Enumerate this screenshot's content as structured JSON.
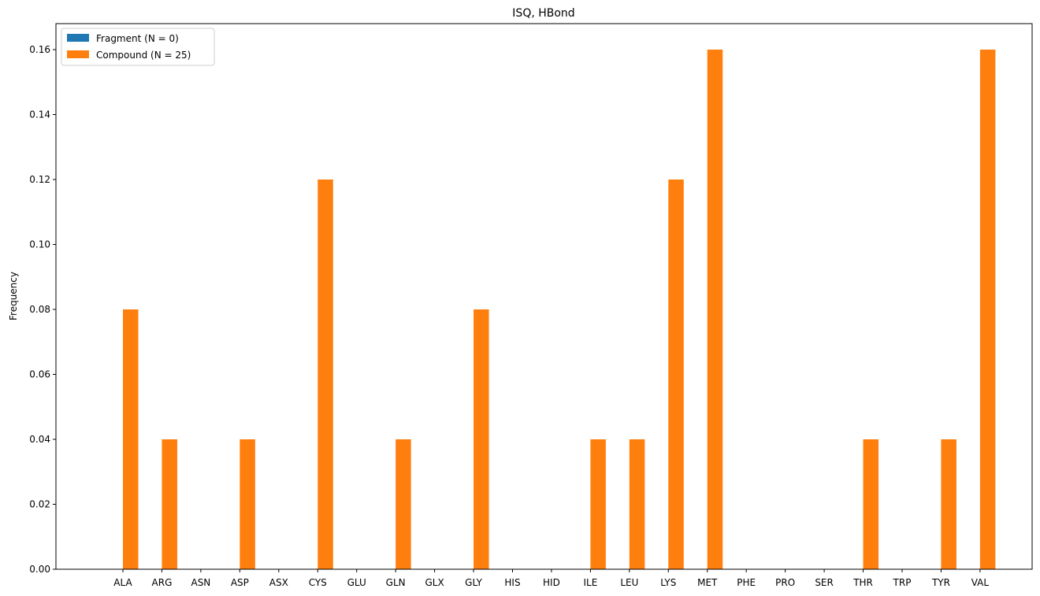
{
  "chart_data": {
    "type": "bar",
    "title": "ISQ, HBond",
    "xlabel": "",
    "ylabel": "Frequency",
    "ylim": [
      0,
      0.168
    ],
    "yticks": [
      "0.00",
      "0.02",
      "0.04",
      "0.06",
      "0.08",
      "0.10",
      "0.12",
      "0.14",
      "0.16"
    ],
    "categories": [
      "ALA",
      "ARG",
      "ASN",
      "ASP",
      "ASX",
      "CYS",
      "GLU",
      "GLN",
      "GLX",
      "GLY",
      "HIS",
      "HID",
      "ILE",
      "LEU",
      "LYS",
      "MET",
      "PHE",
      "PRO",
      "SER",
      "THR",
      "TRP",
      "TYR",
      "VAL"
    ],
    "series": [
      {
        "name": "Fragment (N = 0)",
        "color": "#1f77b4",
        "values": [
          0,
          0,
          0,
          0,
          0,
          0,
          0,
          0,
          0,
          0,
          0,
          0,
          0,
          0,
          0,
          0,
          0,
          0,
          0,
          0,
          0,
          0,
          0
        ]
      },
      {
        "name": "Compound (N = 25)",
        "color": "#ff7f0e",
        "values": [
          0.08,
          0.04,
          0,
          0.04,
          0,
          0.12,
          0,
          0.04,
          0,
          0.08,
          0,
          0,
          0.04,
          0.04,
          0.12,
          0.16,
          0,
          0,
          0,
          0.04,
          0,
          0.04,
          0.16
        ]
      }
    ],
    "legend": "top-left",
    "grid": false
  }
}
